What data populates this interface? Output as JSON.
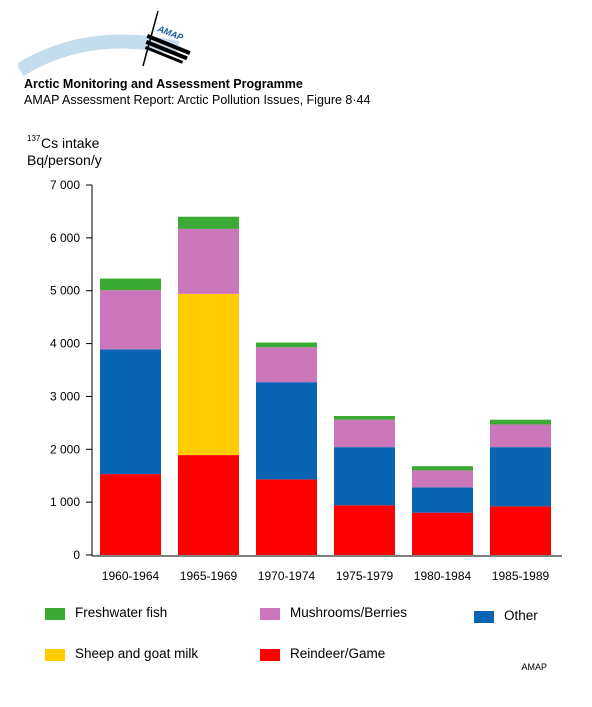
{
  "header": {
    "logo_text": "AMAP",
    "org_title": "Arctic Monitoring and Assessment Programme",
    "report_subtitle": "AMAP Assessment Report: Arctic Pollution Issues, Figure 8·44"
  },
  "footer": {
    "credit": "AMAP"
  },
  "chart_data": {
    "type": "bar",
    "stacked": true,
    "ylabel_sup": "137",
    "ylabel_line1": "Cs intake",
    "ylabel_line2": "Bq/person/y",
    "ylim": [
      0,
      7000
    ],
    "yticks": [
      0,
      1000,
      2000,
      3000,
      4000,
      5000,
      6000,
      7000
    ],
    "ytick_labels": [
      "0",
      "1 000",
      "2 000",
      "3 000",
      "4 000",
      "5 000",
      "6 000",
      "7 000"
    ],
    "grid": false,
    "legend_position": "bottom",
    "categories": [
      "1960-1964",
      "1965-1969",
      "1970-1974",
      "1975-1979",
      "1980-1984",
      "1985-1989"
    ],
    "series": [
      {
        "name": "Reindeer/Game",
        "color": "#ff0000",
        "values": [
          1530,
          1890,
          1430,
          940,
          800,
          920
        ]
      },
      {
        "name": "Sheep and goat milk",
        "color": "#ffcc00",
        "values": [
          0,
          3050,
          0,
          0,
          0,
          0
        ]
      },
      {
        "name": "Other",
        "color": "#0a64b4",
        "values": [
          2360,
          0,
          1840,
          1100,
          480,
          1120
        ]
      },
      {
        "name": "Mushrooms/Berries",
        "color": "#cc77bb",
        "values": [
          1120,
          1230,
          660,
          520,
          320,
          430
        ]
      },
      {
        "name": "Freshwater fish",
        "color": "#3aaa35",
        "values": [
          220,
          230,
          90,
          70,
          80,
          90
        ]
      }
    ]
  }
}
